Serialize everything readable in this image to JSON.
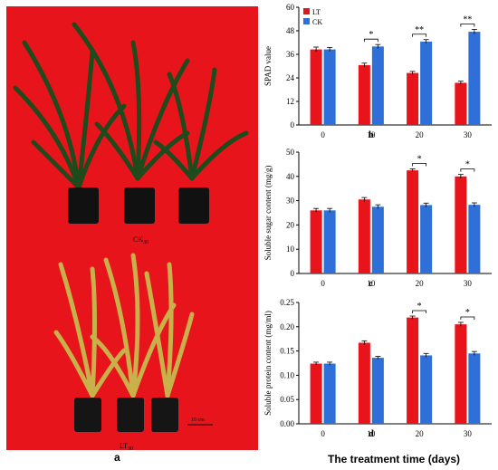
{
  "photo": {
    "label": "a",
    "background_color": "#e8141c",
    "ck_label": "CK",
    "ck_sub": "30",
    "lt_label": "LT",
    "lt_sub": "30",
    "scale_label": "10 cm"
  },
  "x_axis_title": "The treatment time (days)",
  "colors": {
    "LT": "#e8141c",
    "CK": "#2f6fd8"
  },
  "chart_data": [
    {
      "type": "bar",
      "panel_label": "b",
      "ylabel": "SPAD value",
      "categories": [
        "0",
        "10",
        "20",
        "30"
      ],
      "ylim": [
        0,
        60
      ],
      "yticks": [
        "0",
        "12",
        "24",
        "36",
        "48",
        "60"
      ],
      "legend": {
        "placement": "top-left",
        "entries": [
          "LT",
          "CK"
        ]
      },
      "series": [
        {
          "name": "LT",
          "values": [
            38.5,
            30.5,
            26.5,
            21.5
          ],
          "errors": [
            1.2,
            1.0,
            0.8,
            0.8
          ]
        },
        {
          "name": "CK",
          "values": [
            38.5,
            40.0,
            42.5,
            47.5
          ],
          "errors": [
            1.0,
            1.0,
            1.0,
            1.2
          ]
        }
      ],
      "annotations": [
        {
          "category": "10",
          "text": "*"
        },
        {
          "category": "20",
          "text": "**"
        },
        {
          "category": "30",
          "text": "**"
        }
      ]
    },
    {
      "type": "bar",
      "panel_label": "c",
      "ylabel": "Soluble sugar content (mg/g)",
      "categories": [
        "0",
        "10",
        "20",
        "30"
      ],
      "ylim": [
        0,
        50
      ],
      "yticks": [
        "0",
        "10",
        "20",
        "30",
        "40",
        "50"
      ],
      "series": [
        {
          "name": "LT",
          "values": [
            26.0,
            30.5,
            42.5,
            40.0
          ],
          "errors": [
            0.8,
            0.8,
            0.6,
            0.8
          ]
        },
        {
          "name": "CK",
          "values": [
            26.0,
            27.5,
            28.2,
            28.3
          ],
          "errors": [
            0.8,
            0.8,
            0.8,
            0.8
          ]
        }
      ],
      "annotations": [
        {
          "category": "20",
          "text": "*"
        },
        {
          "category": "30",
          "text": "*"
        }
      ]
    },
    {
      "type": "bar",
      "panel_label": "d",
      "ylabel": "Soluble protein content (mg/ml)",
      "categories": [
        "0",
        "10",
        "20",
        "30"
      ],
      "ylim": [
        0,
        0.25
      ],
      "yticks": [
        "0.00",
        "0.05",
        "0.10",
        "0.15",
        "0.20",
        "0.25"
      ],
      "series": [
        {
          "name": "LT",
          "values": [
            0.124,
            0.167,
            0.219,
            0.205
          ],
          "errors": [
            0.003,
            0.004,
            0.003,
            0.004
          ]
        },
        {
          "name": "CK",
          "values": [
            0.124,
            0.136,
            0.141,
            0.145
          ],
          "errors": [
            0.003,
            0.003,
            0.004,
            0.004
          ]
        }
      ],
      "annotations": [
        {
          "category": "20",
          "text": "*"
        },
        {
          "category": "30",
          "text": "*"
        }
      ]
    }
  ]
}
